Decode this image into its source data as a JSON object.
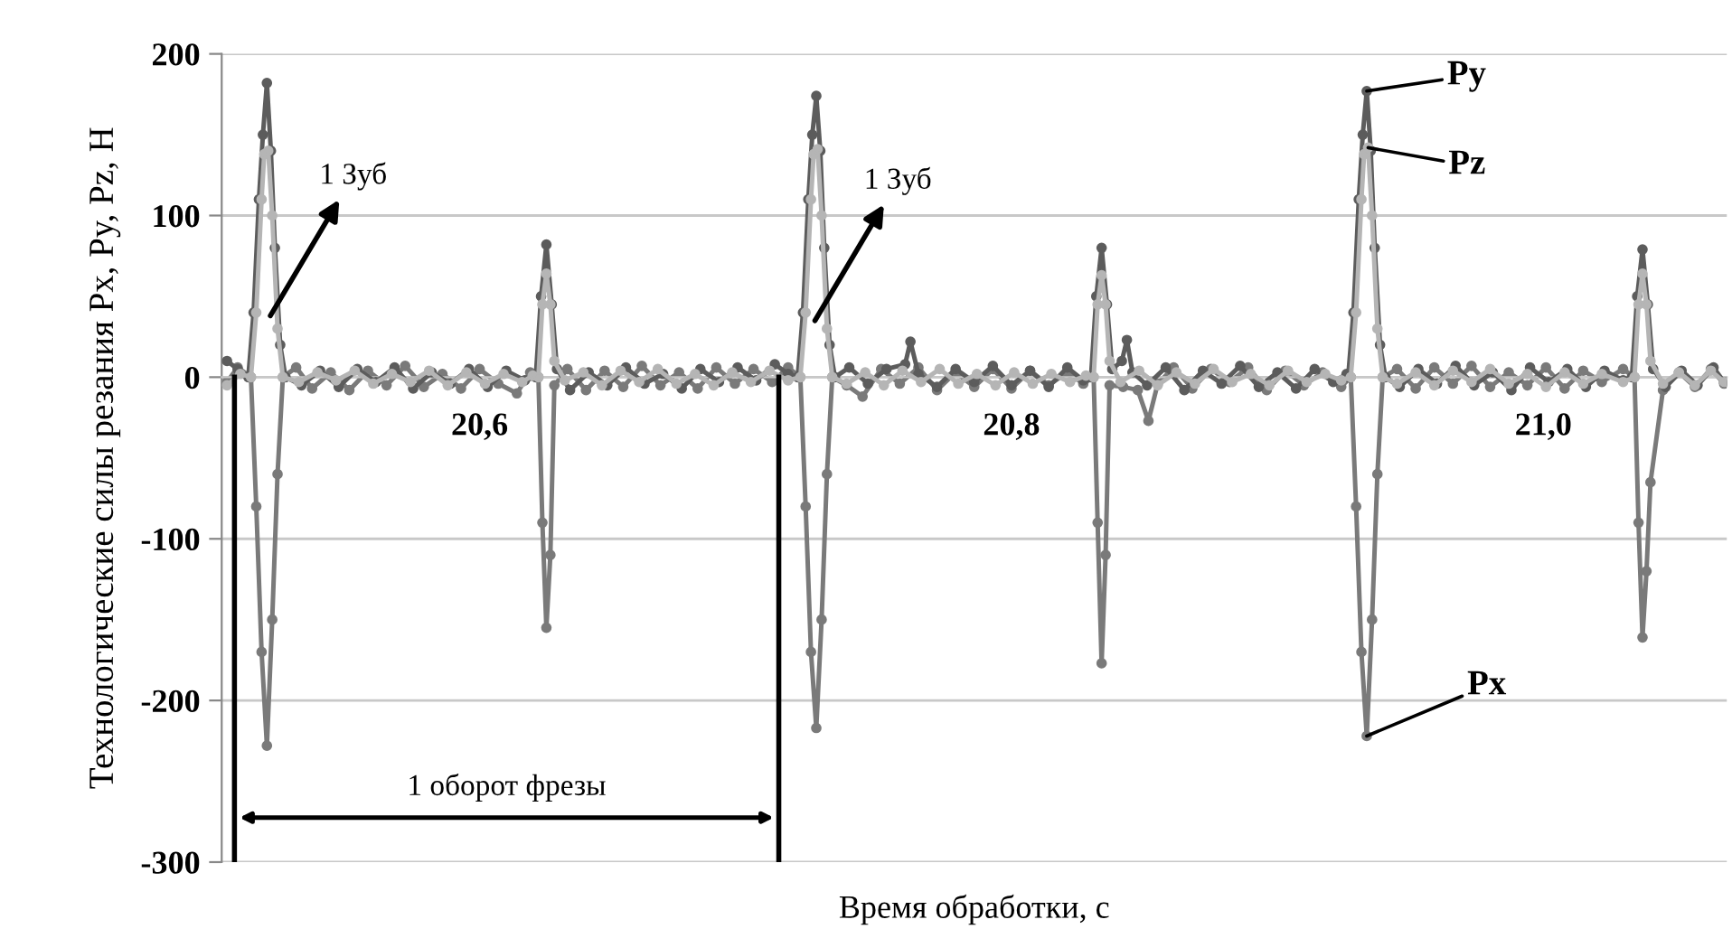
{
  "chart_data": {
    "type": "line",
    "xlabel": "Время обработки, с",
    "ylabel": "Технологические силы резания Px, Py, Pz, H",
    "xlim": [
      20.503,
      21.069
    ],
    "xticks": [
      {
        "value": 20.6,
        "label": "20,6"
      },
      {
        "value": 20.8,
        "label": "20,8"
      },
      {
        "value": 21.0,
        "label": "21,0"
      }
    ],
    "ylim": [
      -300,
      200
    ],
    "yticks": [
      -300,
      -200,
      -100,
      0,
      100,
      200
    ],
    "grid": "y",
    "marker": "circle",
    "line_style": "solid",
    "series": [
      {
        "name": "Px",
        "color": "#7a7a7a",
        "x": [
          20.505,
          20.509,
          20.514,
          20.516,
          20.518,
          20.52,
          20.522,
          20.524,
          20.526,
          20.531,
          20.537,
          20.544,
          20.551,
          20.558,
          20.565,
          20.572,
          20.579,
          20.586,
          20.593,
          20.6,
          20.607,
          20.614,
          20.619,
          20.6221,
          20.6236,
          20.6251,
          20.6266,
          20.6281,
          20.633,
          20.64,
          20.647,
          20.654,
          20.661,
          20.668,
          20.675,
          20.682,
          20.689,
          20.696,
          20.703,
          20.71,
          20.716,
          20.7206,
          20.7226,
          20.7246,
          20.7266,
          20.7286,
          20.7306,
          20.7326,
          20.738,
          20.744,
          20.751,
          20.758,
          20.765,
          20.772,
          20.779,
          20.786,
          20.793,
          20.8,
          20.807,
          20.814,
          20.821,
          20.827,
          20.8309,
          20.8324,
          20.8339,
          20.8354,
          20.8369,
          20.842,
          20.8475,
          20.8515,
          20.855,
          20.861,
          20.868,
          20.875,
          20.882,
          20.889,
          20.896,
          20.903,
          20.91,
          20.917,
          20.924,
          20.9276,
          20.9296,
          20.9316,
          20.9336,
          20.9356,
          20.9376,
          20.9396,
          20.945,
          20.952,
          20.959,
          20.966,
          20.973,
          20.98,
          20.987,
          20.994,
          21.001,
          21.008,
          21.015,
          21.022,
          21.03,
          21.0343,
          21.0358,
          21.0373,
          21.0388,
          21.0403,
          21.045,
          21.051,
          21.057,
          21.063,
          21.068
        ],
        "values": [
          -3,
          6,
          0,
          -80,
          -170,
          -228,
          -150,
          -60,
          0,
          6,
          -7,
          3,
          -8,
          4,
          -5,
          7,
          -6,
          2,
          -7,
          5,
          -4,
          -10,
          3,
          0,
          -90,
          -155,
          -110,
          -5,
          5,
          -8,
          4,
          -6,
          7,
          -5,
          3,
          -7,
          6,
          -4,
          5,
          -3,
          6,
          0,
          -80,
          -170,
          -217,
          -150,
          -60,
          0,
          -5,
          -12,
          5,
          -4,
          6,
          -8,
          3,
          -6,
          5,
          -7,
          4,
          -5,
          3,
          -4,
          0,
          -90,
          -177,
          -110,
          -5,
          -6,
          -8,
          -27,
          -4,
          6,
          -7,
          5,
          -3,
          6,
          -8,
          4,
          -5,
          3,
          -6,
          0,
          -80,
          -170,
          -222,
          -150,
          -60,
          0,
          5,
          -7,
          6,
          -4,
          7,
          -6,
          3,
          -5,
          6,
          -7,
          4,
          -3,
          5,
          0,
          -90,
          -161,
          -120,
          -65,
          -8,
          3,
          -6,
          5,
          -4
        ]
      },
      {
        "name": "Py",
        "color": "#5c5c5c",
        "x": [
          20.505,
          20.509,
          20.513,
          20.515,
          20.517,
          20.5185,
          20.52,
          20.5215,
          20.523,
          20.525,
          20.527,
          20.533,
          20.54,
          20.547,
          20.554,
          20.561,
          20.568,
          20.575,
          20.582,
          20.589,
          20.596,
          20.603,
          20.61,
          20.617,
          20.6211,
          20.6231,
          20.6251,
          20.6271,
          20.6291,
          20.634,
          20.641,
          20.648,
          20.655,
          20.662,
          20.669,
          20.676,
          20.683,
          20.69,
          20.697,
          20.704,
          20.711,
          20.716,
          20.7196,
          20.7216,
          20.7236,
          20.7251,
          20.7266,
          20.7281,
          20.7296,
          20.7316,
          20.7336,
          20.739,
          20.746,
          20.753,
          20.76,
          20.762,
          20.765,
          20.772,
          20.779,
          20.786,
          20.793,
          20.8,
          20.807,
          20.814,
          20.821,
          20.827,
          20.8299,
          20.8319,
          20.8339,
          20.8359,
          20.8379,
          20.8415,
          20.8434,
          20.8455,
          20.851,
          20.858,
          20.865,
          20.872,
          20.879,
          20.886,
          20.893,
          20.9,
          20.907,
          20.914,
          20.921,
          20.926,
          20.9266,
          20.9286,
          20.9306,
          20.9321,
          20.9336,
          20.9351,
          20.9366,
          20.9386,
          20.9406,
          20.946,
          20.953,
          20.96,
          20.967,
          20.974,
          20.981,
          20.988,
          20.995,
          21.002,
          21.009,
          21.016,
          21.023,
          21.03,
          21.0333,
          21.0353,
          21.0373,
          21.0393,
          21.0413,
          21.046,
          21.052,
          21.058,
          21.064,
          21.068
        ],
        "values": [
          10,
          5,
          0,
          40,
          110,
          150,
          182,
          140,
          80,
          20,
          0,
          -5,
          4,
          -6,
          5,
          -3,
          6,
          -7,
          3,
          -4,
          5,
          -6,
          4,
          -2,
          0,
          50,
          82,
          45,
          5,
          -8,
          3,
          -5,
          6,
          -4,
          2,
          -7,
          5,
          -3,
          6,
          -2,
          8,
          2,
          0,
          40,
          110,
          150,
          174,
          140,
          80,
          20,
          0,
          6,
          -4,
          5,
          8,
          22,
          2,
          -6,
          5,
          -3,
          7,
          -5,
          4,
          -6,
          6,
          -2,
          0,
          50,
          80,
          45,
          5,
          10,
          23,
          3,
          -5,
          6,
          -8,
          4,
          -4,
          7,
          -6,
          3,
          -7,
          5,
          -3,
          2,
          0,
          40,
          110,
          150,
          177,
          140,
          80,
          20,
          0,
          -6,
          5,
          -4,
          7,
          -5,
          3,
          -8,
          6,
          -3,
          5,
          -6,
          4,
          -2,
          0,
          50,
          79,
          45,
          5,
          -6,
          4,
          -5,
          6,
          -3
        ]
      },
      {
        "name": "Pz",
        "color": "#b5b5b5",
        "x": [
          20.505,
          20.51,
          20.514,
          20.516,
          20.518,
          20.519,
          20.5205,
          20.522,
          20.524,
          20.526,
          20.532,
          20.539,
          20.546,
          20.553,
          20.56,
          20.567,
          20.574,
          20.581,
          20.588,
          20.595,
          20.602,
          20.609,
          20.616,
          20.62,
          20.6221,
          20.6236,
          20.6251,
          20.6266,
          20.6281,
          20.632,
          20.639,
          20.646,
          20.653,
          20.66,
          20.667,
          20.674,
          20.681,
          20.688,
          20.695,
          20.702,
          20.709,
          20.716,
          20.7206,
          20.7226,
          20.7246,
          20.7256,
          20.7271,
          20.7286,
          20.7306,
          20.7326,
          20.738,
          20.745,
          20.752,
          20.759,
          20.766,
          20.773,
          20.78,
          20.787,
          20.794,
          20.801,
          20.808,
          20.815,
          20.822,
          20.828,
          20.8309,
          20.8324,
          20.8339,
          20.8354,
          20.8369,
          20.841,
          20.848,
          20.855,
          20.862,
          20.869,
          20.876,
          20.883,
          20.89,
          20.897,
          20.904,
          20.911,
          20.918,
          20.924,
          20.9276,
          20.9296,
          20.9316,
          20.9326,
          20.9341,
          20.9356,
          20.9376,
          20.9396,
          20.945,
          20.952,
          20.959,
          20.966,
          20.973,
          20.98,
          20.987,
          20.994,
          21.001,
          21.008,
          21.015,
          21.022,
          21.03,
          21.0343,
          21.0358,
          21.0373,
          21.0388,
          21.0403,
          21.045,
          21.051,
          21.057,
          21.063,
          21.068
        ],
        "values": [
          -5,
          2,
          0,
          40,
          110,
          138,
          140,
          100,
          30,
          0,
          -3,
          3,
          -2,
          4,
          -4,
          2,
          -3,
          4,
          -5,
          3,
          -4,
          2,
          -3,
          1,
          0,
          45,
          64,
          45,
          10,
          -2,
          3,
          -5,
          4,
          -3,
          5,
          -4,
          2,
          -5,
          3,
          -3,
          4,
          -2,
          0,
          40,
          110,
          138,
          141,
          100,
          30,
          0,
          -4,
          3,
          -5,
          4,
          -3,
          5,
          -4,
          2,
          -5,
          3,
          -4,
          2,
          -3,
          1,
          0,
          45,
          63,
          45,
          10,
          -3,
          4,
          -5,
          3,
          -4,
          5,
          -3,
          2,
          -5,
          4,
          -3,
          2,
          -2,
          0,
          40,
          110,
          138,
          142,
          100,
          30,
          0,
          -4,
          3,
          -5,
          4,
          -3,
          5,
          -4,
          2,
          -6,
          3,
          -4,
          2,
          -3,
          0,
          45,
          64,
          45,
          10,
          -4,
          3,
          -5,
          4,
          -3
        ]
      }
    ],
    "ref_lines": [
      {
        "axis": "x",
        "value": 20.5078,
        "label": null,
        "color": "#000000"
      },
      {
        "axis": "x",
        "value": 20.7125,
        "label": null,
        "color": "#000000"
      }
    ],
    "annotations": [
      {
        "text": "1 Зуб",
        "x": 20.5213,
        "y": 38
      },
      {
        "text": "1 Зуб",
        "x": 20.7261,
        "y": 35
      },
      "1 оборот фрезы"
    ]
  }
}
